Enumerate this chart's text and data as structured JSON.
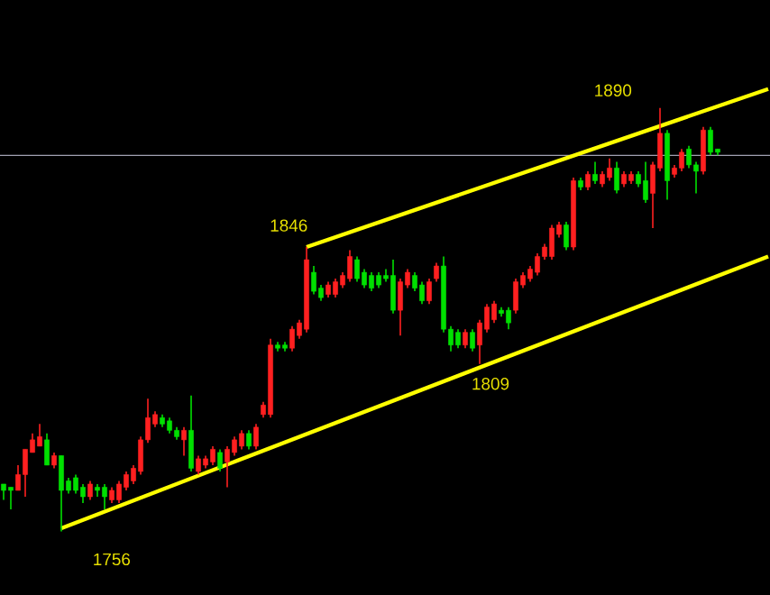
{
  "chart_data": {
    "type": "candlestick",
    "categories": [
      null,
      null,
      null,
      null,
      null,
      null,
      null,
      null,
      null,
      null,
      null,
      null,
      null,
      null,
      null,
      null,
      null,
      null,
      null,
      null,
      null,
      null,
      null,
      null,
      null,
      null,
      null,
      null,
      null,
      null,
      null,
      null,
      null,
      null,
      null,
      null,
      null,
      null,
      null,
      null,
      null,
      null,
      null,
      null,
      null,
      null,
      null,
      null,
      null,
      null,
      null,
      null,
      null,
      null,
      null,
      null,
      null,
      null,
      null,
      null,
      null,
      null,
      null,
      null,
      null,
      null,
      null,
      null,
      null,
      null,
      null,
      null,
      null,
      null,
      null,
      null,
      null,
      null,
      null,
      null,
      null,
      null,
      null,
      null,
      null,
      null,
      null,
      null,
      null,
      null,
      null,
      null,
      null,
      null,
      null,
      null,
      null,
      null,
      null,
      null,
      null,
      null,
      null,
      null,
      null,
      null,
      null
    ],
    "ohlc": [
      [
        1771,
        1771,
        1766,
        1769
      ],
      [
        1770,
        1770,
        1763,
        1769
      ],
      [
        1769,
        1777,
        1769,
        1774
      ],
      [
        1774,
        1782,
        1767,
        1782
      ],
      [
        1781,
        1787,
        1781,
        1785
      ],
      [
        1783,
        1790,
        1783,
        1786
      ],
      [
        1785,
        1787,
        1777,
        1777
      ],
      [
        1777,
        1781,
        1776,
        1780
      ],
      [
        1780,
        1780,
        1756,
        1769
      ],
      [
        1772,
        1773,
        1768,
        1769
      ],
      [
        1773,
        1774,
        1768,
        1769
      ],
      [
        1770,
        1771,
        1765,
        1767
      ],
      [
        1767,
        1772,
        1766,
        1771
      ],
      [
        1770,
        1771,
        1767,
        1769
      ],
      [
        1770,
        1771,
        1763,
        1767
      ],
      [
        1766,
        1770,
        1765,
        1769
      ],
      [
        1766,
        1772,
        1765,
        1771
      ],
      [
        1770,
        1775,
        1769,
        1774
      ],
      [
        1772,
        1777,
        1771,
        1776
      ],
      [
        1775,
        1786,
        1774,
        1785
      ],
      [
        1785,
        1798,
        1784,
        1792
      ],
      [
        1790,
        1794,
        1789,
        1793
      ],
      [
        1792,
        1793,
        1789,
        1790
      ],
      [
        1791,
        1792,
        1787,
        1788
      ],
      [
        1788,
        1789,
        1785,
        1786
      ],
      [
        1785,
        1789,
        1780,
        1788
      ],
      [
        1788,
        1799,
        1775,
        1776
      ],
      [
        1775,
        1780,
        1774,
        1779
      ],
      [
        1777,
        1780,
        1776,
        1779
      ],
      [
        1778,
        1783,
        1777,
        1782
      ],
      [
        1781,
        1782,
        1775,
        1776
      ],
      [
        1778,
        1783,
        1770,
        1782
      ],
      [
        1781,
        1786,
        1780,
        1785
      ],
      [
        1783,
        1788,
        1782,
        1787
      ],
      [
        1787,
        1788,
        1782,
        1783
      ],
      [
        1783,
        1790,
        1782,
        1789
      ],
      [
        1793,
        1797,
        1792,
        1796
      ],
      [
        1793,
        1817,
        1792,
        1815
      ],
      [
        1815,
        1816,
        1813,
        1814
      ],
      [
        1815,
        1816,
        1813,
        1814
      ],
      [
        1814,
        1821,
        1813,
        1820
      ],
      [
        1818,
        1823,
        1817,
        1822
      ],
      [
        1820,
        1846,
        1819,
        1842
      ],
      [
        1838,
        1840,
        1831,
        1832
      ],
      [
        1833,
        1834,
        1829,
        1830
      ],
      [
        1831,
        1835,
        1830,
        1834
      ],
      [
        1831,
        1836,
        1830,
        1835
      ],
      [
        1834,
        1838,
        1833,
        1837
      ],
      [
        1836,
        1845,
        1835,
        1843
      ],
      [
        1842,
        1843,
        1835,
        1836
      ],
      [
        1838,
        1839,
        1833,
        1834
      ],
      [
        1837,
        1838,
        1832,
        1833
      ],
      [
        1837,
        1838,
        1833,
        1834
      ],
      [
        1837,
        1839,
        1835,
        1836
      ],
      [
        1837,
        1842,
        1825,
        1826
      ],
      [
        1826,
        1836,
        1818,
        1835
      ],
      [
        1834,
        1839,
        1833,
        1838
      ],
      [
        1837,
        1838,
        1832,
        1833
      ],
      [
        1834,
        1835,
        1828,
        1829
      ],
      [
        1829,
        1836,
        1828,
        1835
      ],
      [
        1836,
        1841,
        1835,
        1840
      ],
      [
        1840,
        1843,
        1819,
        1820
      ],
      [
        1820,
        1821,
        1813,
        1815
      ],
      [
        1819,
        1820,
        1814,
        1815
      ],
      [
        1815,
        1820,
        1814,
        1819
      ],
      [
        1819,
        1820,
        1813,
        1814
      ],
      [
        1815,
        1823,
        1809,
        1822
      ],
      [
        1820,
        1828,
        1819,
        1827
      ],
      [
        1823,
        1829,
        1822,
        1828
      ],
      [
        1826,
        1827,
        1824,
        1825
      ],
      [
        1826,
        1827,
        1820,
        1822
      ],
      [
        1826,
        1836,
        1825,
        1835
      ],
      [
        1834,
        1838,
        1833,
        1837
      ],
      [
        1836,
        1840,
        1835,
        1839
      ],
      [
        1838,
        1844,
        1837,
        1843
      ],
      [
        1843,
        1847,
        1842,
        1846
      ],
      [
        1843,
        1853,
        1842,
        1852
      ],
      [
        1850,
        1854,
        1849,
        1853
      ],
      [
        1853,
        1854,
        1845,
        1846
      ],
      [
        1846,
        1868,
        1845,
        1867
      ],
      [
        1867,
        1868,
        1864,
        1865
      ],
      [
        1865,
        1870,
        1864,
        1869
      ],
      [
        1869,
        1873,
        1866,
        1867
      ],
      [
        1866,
        1870,
        1865,
        1869
      ],
      [
        1868,
        1874,
        1867,
        1871
      ],
      [
        1871,
        1873,
        1863,
        1864
      ],
      [
        1866,
        1870,
        1865,
        1869
      ],
      [
        1867,
        1870,
        1866,
        1869
      ],
      [
        1869,
        1870,
        1865,
        1866
      ],
      [
        1867,
        1873,
        1860,
        1861
      ],
      [
        1863,
        1873,
        1852,
        1872
      ],
      [
        1871,
        1890,
        1870,
        1882
      ],
      [
        1882,
        1883,
        1861,
        1867
      ],
      [
        1869,
        1872,
        1868,
        1871
      ],
      [
        1871,
        1877,
        1870,
        1876
      ],
      [
        1877,
        1878,
        1871,
        1872
      ],
      [
        1872,
        1873,
        1863,
        1870
      ],
      [
        1870,
        1884,
        1869,
        1883
      ],
      [
        1883,
        1884,
        1875,
        1876
      ],
      [
        1877,
        1877,
        1875,
        1876
      ],
      null,
      null,
      null,
      null,
      null,
      null,
      null
    ],
    "colors": [
      "#00e000",
      "#00e000",
      "#ff2020",
      "#ff2020",
      "#ff2020",
      "#ff2020",
      "#00e000",
      "#ff2020",
      "#00e000",
      "#00e000",
      "#00e000",
      "#00e000",
      "#ff2020",
      "#00e000",
      "#00e000",
      "#ff2020",
      "#ff2020",
      "#ff2020",
      "#ff2020",
      "#ff2020",
      "#ff2020",
      "#ff2020",
      "#00e000",
      "#00e000",
      "#00e000",
      "#ff2020",
      "#00e000",
      "#ff2020",
      "#ff2020",
      "#ff2020",
      "#00e000",
      "#ff2020",
      "#ff2020",
      "#ff2020",
      "#00e000",
      "#ff2020",
      "#ff2020",
      "#ff2020",
      "#00e000",
      "#00e000",
      "#ff2020",
      "#ff2020",
      "#ff2020",
      "#00e000",
      "#00e000",
      "#ff2020",
      "#ff2020",
      "#ff2020",
      "#ff2020",
      "#00e000",
      "#00e000",
      "#00e000",
      "#00e000",
      "#00e000",
      "#00e000",
      "#ff2020",
      "#ff2020",
      "#00e000",
      "#00e000",
      "#ff2020",
      "#ff2020",
      "#00e000",
      "#00e000",
      "#00e000",
      "#ff2020",
      "#00e000",
      "#ff2020",
      "#ff2020",
      "#ff2020",
      "#00e000",
      "#00e000",
      "#ff2020",
      "#ff2020",
      "#ff2020",
      "#ff2020",
      "#ff2020",
      "#ff2020",
      "#ff2020",
      "#00e000",
      "#ff2020",
      "#00e000",
      "#ff2020",
      "#00e000",
      "#ff2020",
      "#ff2020",
      "#00e000",
      "#ff2020",
      "#ff2020",
      "#00e000",
      "#00e000",
      "#ff2020",
      "#ff2020",
      "#00e000",
      "#ff2020",
      "#ff2020",
      "#00e000",
      "#00e000",
      "#ff2020",
      "#00e000",
      "#00e000",
      null,
      null,
      null,
      null,
      null,
      null,
      null
    ],
    "series": [
      {
        "type": "line",
        "values": [
          null,
          null,
          null,
          null,
          null,
          null,
          null,
          null,
          null,
          null,
          null,
          null,
          null,
          null,
          null,
          null,
          null,
          null,
          null,
          null,
          null,
          null,
          null,
          null,
          null,
          null,
          null,
          null,
          null,
          null,
          null,
          null,
          null,
          null,
          null,
          null,
          null,
          null,
          null,
          null,
          null,
          null,
          1846,
          null,
          null,
          null,
          null,
          null,
          null,
          null,
          null,
          null,
          null,
          null,
          null,
          null,
          null,
          null,
          null,
          null,
          null,
          null,
          null,
          null,
          null,
          null,
          null,
          null,
          null,
          null,
          null,
          null,
          null,
          null,
          null,
          null,
          null,
          null,
          null,
          null,
          null,
          null,
          null,
          null,
          null,
          null,
          null,
          null,
          null,
          null,
          null,
          null,
          null,
          null,
          null,
          null,
          null,
          null,
          null,
          null,
          null,
          null,
          null,
          null,
          null,
          null,
          1896
        ],
        "color": "#ffff00"
      },
      {
        "type": "line",
        "values": [
          null,
          null,
          null,
          null,
          null,
          null,
          null,
          null,
          1757,
          null,
          null,
          null,
          null,
          null,
          null,
          null,
          null,
          null,
          null,
          null,
          null,
          null,
          null,
          null,
          null,
          null,
          null,
          null,
          null,
          null,
          null,
          null,
          null,
          null,
          null,
          null,
          null,
          null,
          null,
          null,
          null,
          null,
          null,
          null,
          null,
          null,
          null,
          null,
          null,
          null,
          null,
          null,
          null,
          null,
          null,
          null,
          null,
          null,
          null,
          null,
          null,
          null,
          null,
          null,
          null,
          null,
          null,
          null,
          null,
          null,
          null,
          null,
          null,
          null,
          null,
          null,
          null,
          null,
          null,
          null,
          null,
          null,
          null,
          null,
          null,
          null,
          null,
          null,
          null,
          null,
          null,
          null,
          null,
          null,
          null,
          null,
          null,
          null,
          null,
          null,
          null,
          null,
          null,
          null,
          null,
          null,
          1843
        ],
        "color": "#ffff00"
      }
    ],
    "ref_lines": [
      {
        "axis": "y",
        "value": 1875,
        "color": "#a0a0b0"
      }
    ],
    "annotations": [
      "1890",
      "1846",
      "1809",
      "1756"
    ]
  }
}
